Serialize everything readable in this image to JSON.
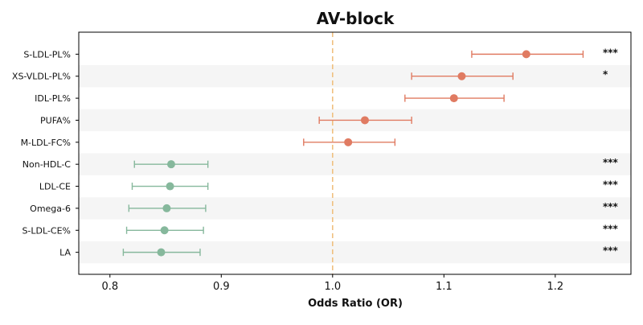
{
  "chart_data": {
    "type": "forest",
    "title": "AV-block",
    "xlabel": "Odds Ratio (OR)",
    "xlim": [
      0.772,
      1.268
    ],
    "xticks": [
      0.8,
      0.9,
      1.0,
      1.1,
      1.2
    ],
    "xtick_labels": [
      "0.8",
      "0.9",
      "1.0",
      "1.1",
      "1.2"
    ],
    "reference_line": 1.0,
    "colors": {
      "risk": "#e07b62",
      "protective": "#86b89c",
      "reference": "#f0c080",
      "band": "#f5f5f5"
    },
    "rows": [
      {
        "label": "S-LDL-PL%",
        "or": 1.174,
        "lo": 1.125,
        "hi": 1.225,
        "sig": "***",
        "group": "risk"
      },
      {
        "label": "XS-VLDL-PL%",
        "or": 1.116,
        "lo": 1.071,
        "hi": 1.162,
        "sig": "*",
        "group": "risk"
      },
      {
        "label": "IDL-PL%",
        "or": 1.109,
        "lo": 1.065,
        "hi": 1.154,
        "sig": "",
        "group": "risk"
      },
      {
        "label": "PUFA%",
        "or": 1.029,
        "lo": 0.988,
        "hi": 1.071,
        "sig": "",
        "group": "risk"
      },
      {
        "label": "M-LDL-FC%",
        "or": 1.014,
        "lo": 0.974,
        "hi": 1.056,
        "sig": "",
        "group": "risk"
      },
      {
        "label": "Non-HDL-C",
        "or": 0.855,
        "lo": 0.822,
        "hi": 0.888,
        "sig": "***",
        "group": "protective"
      },
      {
        "label": "LDL-CE",
        "or": 0.854,
        "lo": 0.82,
        "hi": 0.888,
        "sig": "***",
        "group": "protective"
      },
      {
        "label": "Omega-6",
        "or": 0.851,
        "lo": 0.817,
        "hi": 0.886,
        "sig": "***",
        "group": "protective"
      },
      {
        "label": "S-LDL-CE%",
        "or": 0.849,
        "lo": 0.815,
        "hi": 0.884,
        "sig": "***",
        "group": "protective"
      },
      {
        "label": "LA",
        "or": 0.846,
        "lo": 0.812,
        "hi": 0.881,
        "sig": "***",
        "group": "protective"
      }
    ]
  }
}
